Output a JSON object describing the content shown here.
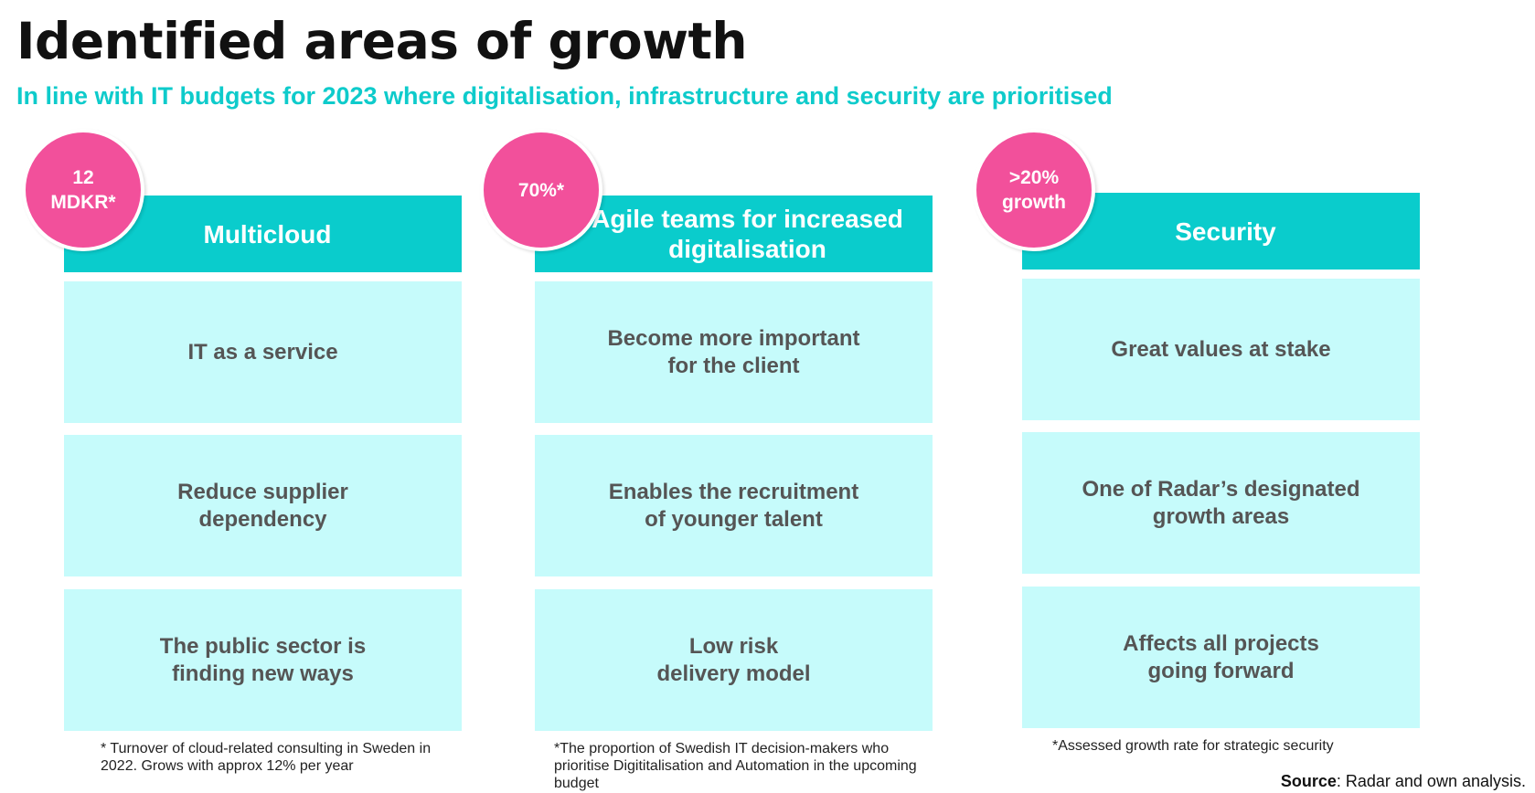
{
  "title": "Identified areas of growth",
  "subtitle": "In line with IT budgets for 2023 where digitalisation, infrastructure and security are prioritised",
  "colors": {
    "header": "#0acccc",
    "card": "#c6fbfb",
    "badge": "#f2509b",
    "subtitle": "#0ecbcb"
  },
  "columns": [
    {
      "badge": "12\nMDKR*",
      "header": "Multicloud",
      "cards": [
        "IT as a service",
        "Reduce supplier\ndependency",
        "The public sector is\nfinding new ways"
      ],
      "footnote": "* Turnover of cloud-related consulting in Sweden in 2022. Grows with approx 12% per year"
    },
    {
      "badge": "70%*",
      "header": "Agile teams for increased digitalisation",
      "cards": [
        "Become more important\nfor the client",
        "Enables the recruitment\nof younger talent",
        "Low risk\ndelivery model"
      ],
      "footnote": "*The proportion of Swedish IT decision-makers who prioritise Digititalisation and Automation in the upcoming budget"
    },
    {
      "badge": ">20%\ngrowth",
      "header": "Security",
      "cards": [
        "Great values at stake",
        "One of Radar’s designated\ngrowth areas",
        "Affects all projects\ngoing forward"
      ],
      "footnote": "*Assessed growth rate for strategic security"
    }
  ],
  "source": {
    "label": "Source",
    "text": ": Radar and own analysis."
  }
}
